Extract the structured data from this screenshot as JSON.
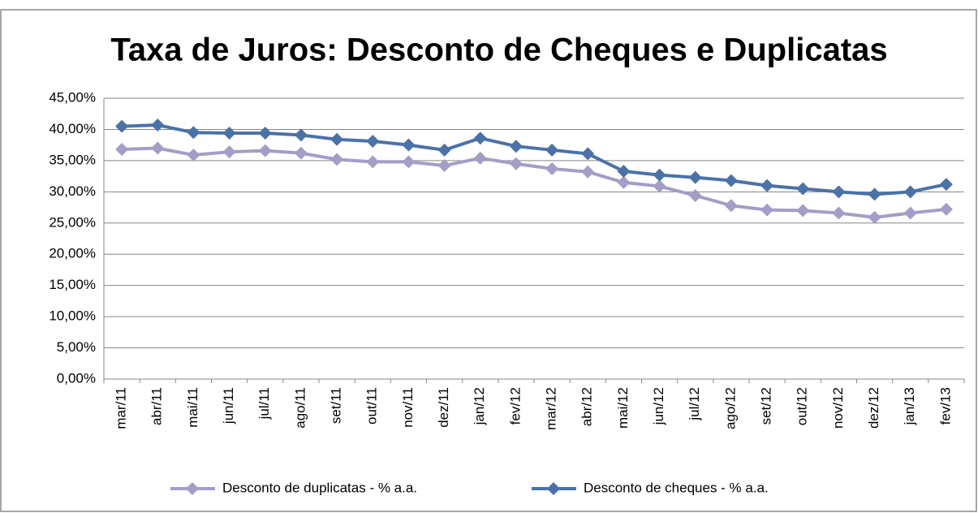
{
  "chart_data": {
    "type": "line",
    "title": "Taxa de Juros: Desconto de Cheques e Duplicatas",
    "categories": [
      "mar/11",
      "abr/11",
      "mai/11",
      "jun/11",
      "jul/11",
      "ago/11",
      "set/11",
      "out/11",
      "nov/11",
      "dez/11",
      "jan/12",
      "fev/12",
      "mar/12",
      "abr/12",
      "mai/12",
      "jun/12",
      "jul/12",
      "ago/12",
      "set/12",
      "out/12",
      "nov/12",
      "dez/12",
      "jan/13",
      "fev/13"
    ],
    "series": [
      {
        "name": "Desconto de duplicatas - % a.a.",
        "color": "#a69cc8",
        "values": [
          36.8,
          37.0,
          35.9,
          36.4,
          36.6,
          36.2,
          35.2,
          34.8,
          34.8,
          34.2,
          35.4,
          34.5,
          33.7,
          33.2,
          31.5,
          30.9,
          29.4,
          27.8,
          27.1,
          27.0,
          26.6,
          25.9,
          26.6,
          27.2
        ]
      },
      {
        "name": "Desconto de cheques - % a.a.",
        "color": "#4a72a8",
        "values": [
          40.5,
          40.7,
          39.5,
          39.4,
          39.4,
          39.1,
          38.4,
          38.1,
          37.5,
          36.7,
          38.6,
          37.3,
          36.7,
          36.1,
          33.3,
          32.7,
          32.3,
          31.8,
          31.0,
          30.5,
          30.0,
          29.6,
          30.0,
          31.2
        ]
      }
    ],
    "ylim": [
      0,
      45
    ],
    "yticks": [
      {
        "value": 0,
        "label": "0,00%"
      },
      {
        "value": 5,
        "label": "5,00%"
      },
      {
        "value": 10,
        "label": "10,00%"
      },
      {
        "value": 15,
        "label": "15,00%"
      },
      {
        "value": 20,
        "label": "20,00%"
      },
      {
        "value": 25,
        "label": "25,00%"
      },
      {
        "value": 30,
        "label": "30,00%"
      },
      {
        "value": 35,
        "label": "35,00%"
      },
      {
        "value": 40,
        "label": "40,00%"
      },
      {
        "value": 45,
        "label": "45,00%"
      }
    ],
    "grid": true,
    "legend": "bottom"
  }
}
